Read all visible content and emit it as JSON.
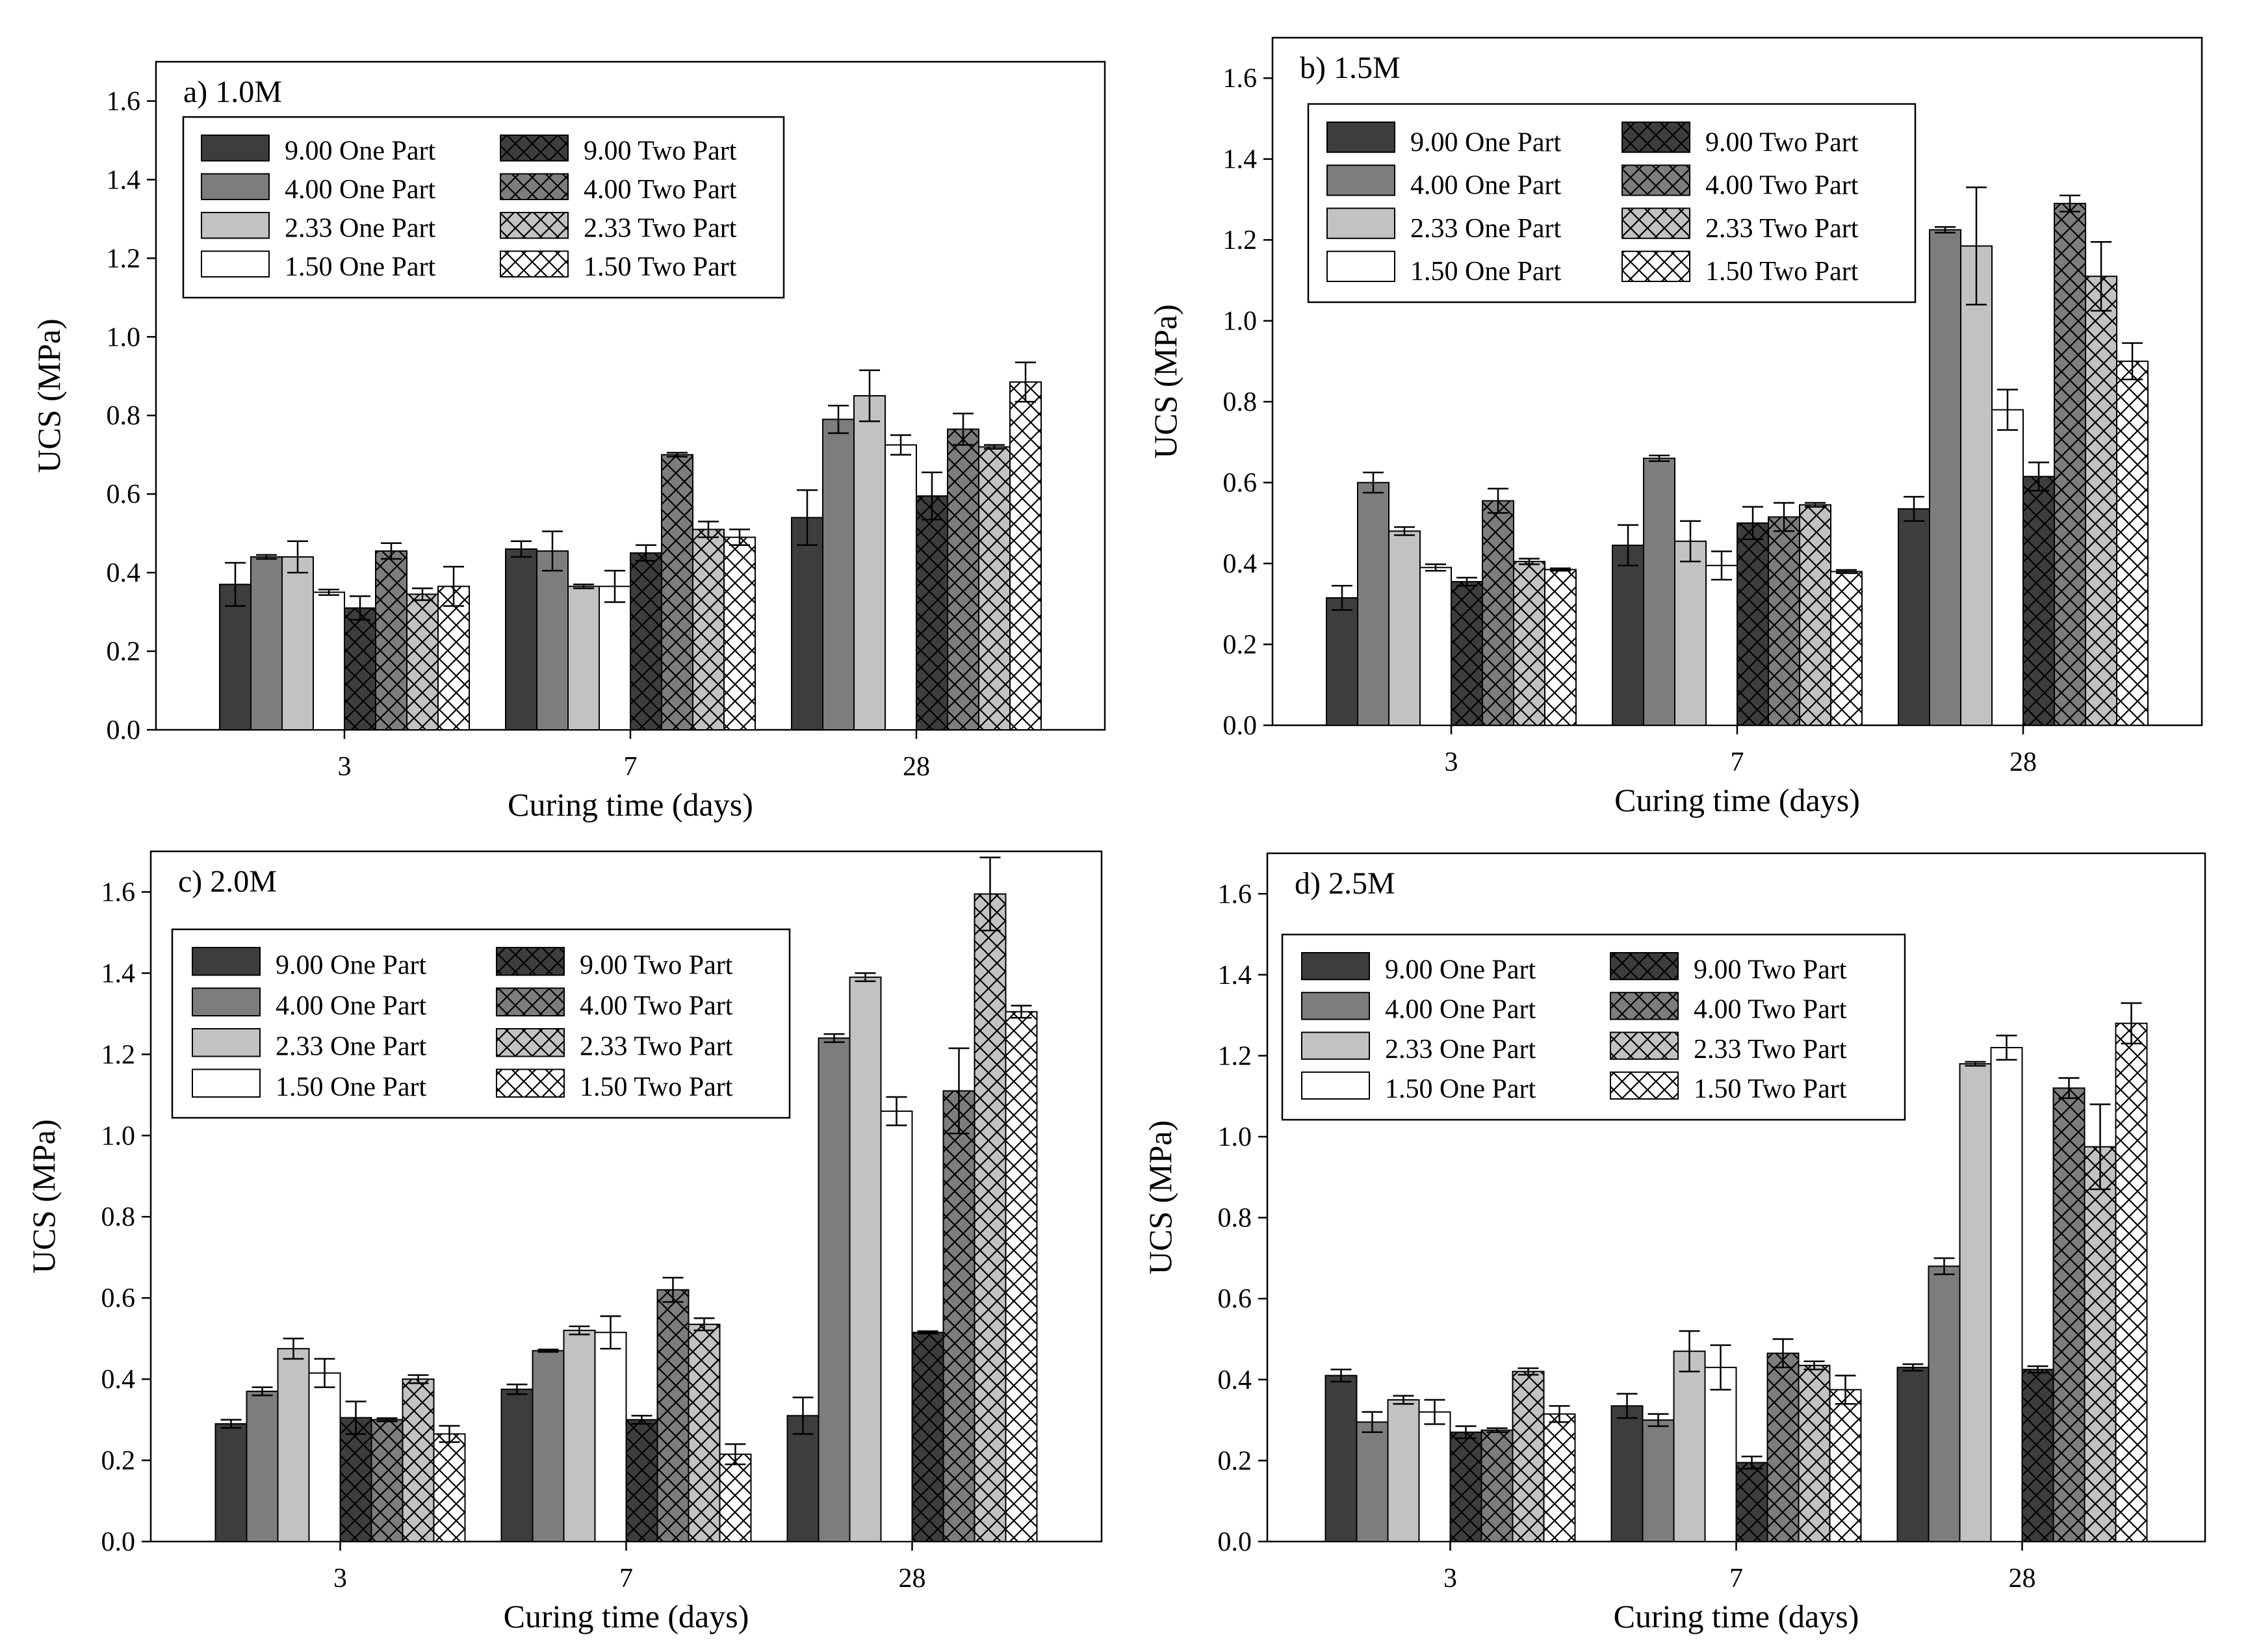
{
  "chart_data": [
    {
      "type": "bar",
      "title": "a) 1.0M",
      "xlabel": "Curing time (days)",
      "ylabel": "UCS (MPa)",
      "ylim": [
        0,
        1.7
      ],
      "yticks": [
        "0.0",
        "0.2",
        "0.4",
        "0.6",
        "0.8",
        "1.0",
        "1.2",
        "1.4",
        "1.6"
      ],
      "categories": [
        "3",
        "7",
        "28"
      ],
      "legend_position": "upper-left",
      "series": [
        {
          "name": "9.00 One Part",
          "values": [
            0.37,
            0.46,
            0.54
          ],
          "errors": [
            0.055,
            0.02,
            0.07
          ]
        },
        {
          "name": "4.00 One Part",
          "values": [
            0.44,
            0.455,
            0.79
          ],
          "errors": [
            0.005,
            0.05,
            0.035
          ]
        },
        {
          "name": "2.33 One Part",
          "values": [
            0.44,
            0.365,
            0.85
          ],
          "errors": [
            0.04,
            0.005,
            0.065
          ]
        },
        {
          "name": "1.50 One Part",
          "values": [
            0.35,
            0.365,
            0.725
          ],
          "errors": [
            0.007,
            0.04,
            0.025
          ]
        },
        {
          "name": "9.00 Two Part",
          "values": [
            0.31,
            0.45,
            0.595
          ],
          "errors": [
            0.03,
            0.02,
            0.06
          ]
        },
        {
          "name": "4.00 Two Part",
          "values": [
            0.455,
            0.7,
            0.765
          ],
          "errors": [
            0.02,
            0.005,
            0.04
          ]
        },
        {
          "name": "2.33 Two Part",
          "values": [
            0.345,
            0.51,
            0.72
          ],
          "errors": [
            0.015,
            0.02,
            0.005
          ]
        },
        {
          "name": "1.50 Two Part",
          "values": [
            0.365,
            0.49,
            0.885
          ],
          "errors": [
            0.05,
            0.02,
            0.05
          ]
        }
      ]
    },
    {
      "type": "bar",
      "title": "b) 1.5M",
      "xlabel": "Curing time (days)",
      "ylabel": "UCS (MPa)",
      "ylim": [
        0,
        1.7
      ],
      "yticks": [
        "0.0",
        "0.2",
        "0.4",
        "0.6",
        "0.8",
        "1.0",
        "1.2",
        "1.4",
        "1.6"
      ],
      "categories": [
        "3",
        "7",
        "28"
      ],
      "legend_position": "upper-left",
      "series": [
        {
          "name": "9.00 One Part",
          "values": [
            0.315,
            0.445,
            0.535
          ],
          "errors": [
            0.03,
            0.05,
            0.03
          ]
        },
        {
          "name": "4.00 One Part",
          "values": [
            0.6,
            0.66,
            1.225
          ],
          "errors": [
            0.025,
            0.007,
            0.007
          ]
        },
        {
          "name": "2.33 One Part",
          "values": [
            0.48,
            0.455,
            1.185
          ],
          "errors": [
            0.01,
            0.05,
            0.145
          ]
        },
        {
          "name": "1.50 One Part",
          "values": [
            0.39,
            0.395,
            0.78
          ],
          "errors": [
            0.008,
            0.035,
            0.05
          ]
        },
        {
          "name": "9.00 Two Part",
          "values": [
            0.355,
            0.5,
            0.615
          ],
          "errors": [
            0.01,
            0.04,
            0.035
          ]
        },
        {
          "name": "4.00 Two Part",
          "values": [
            0.555,
            0.515,
            1.29
          ],
          "errors": [
            0.03,
            0.035,
            0.02
          ]
        },
        {
          "name": "2.33 Two Part",
          "values": [
            0.405,
            0.545,
            1.11
          ],
          "errors": [
            0.007,
            0.005,
            0.085
          ]
        },
        {
          "name": "1.50 Two Part",
          "values": [
            0.385,
            0.38,
            0.9
          ],
          "errors": [
            0.003,
            0.004,
            0.045
          ]
        }
      ]
    },
    {
      "type": "bar",
      "title": "c) 2.0M",
      "xlabel": "Curing time (days)",
      "ylabel": "UCS (MPa)",
      "ylim": [
        0,
        1.7
      ],
      "yticks": [
        "0.0",
        "0.2",
        "0.4",
        "0.6",
        "0.8",
        "1.0",
        "1.2",
        "1.4",
        "1.6"
      ],
      "categories": [
        "3",
        "7",
        "28"
      ],
      "legend_position": "upper-left",
      "series": [
        {
          "name": "9.00 One Part",
          "values": [
            0.29,
            0.375,
            0.31
          ],
          "errors": [
            0.01,
            0.012,
            0.045
          ]
        },
        {
          "name": "4.00 One Part",
          "values": [
            0.37,
            0.47,
            1.24
          ],
          "errors": [
            0.01,
            0.003,
            0.01
          ]
        },
        {
          "name": "2.33 One Part",
          "values": [
            0.475,
            0.52,
            1.39
          ],
          "errors": [
            0.025,
            0.01,
            0.01
          ]
        },
        {
          "name": "1.50 One Part",
          "values": [
            0.415,
            0.515,
            1.06
          ],
          "errors": [
            0.035,
            0.04,
            0.035
          ]
        },
        {
          "name": "9.00 Two Part",
          "values": [
            0.305,
            0.3,
            0.515
          ],
          "errors": [
            0.04,
            0.01,
            0.003
          ]
        },
        {
          "name": "4.00 Two Part",
          "values": [
            0.3,
            0.62,
            1.11
          ],
          "errors": [
            0.004,
            0.03,
            0.105
          ]
        },
        {
          "name": "2.33 Two Part",
          "values": [
            0.4,
            0.535,
            1.595
          ],
          "errors": [
            0.01,
            0.015,
            0.09
          ]
        },
        {
          "name": "1.50 Two Part",
          "values": [
            0.265,
            0.215,
            1.305
          ],
          "errors": [
            0.02,
            0.025,
            0.015
          ]
        }
      ]
    },
    {
      "type": "bar",
      "title": "d) 2.5M",
      "xlabel": "Curing time (days)",
      "ylabel": "UCS (MPa)",
      "ylim": [
        0,
        1.7
      ],
      "yticks": [
        "0.0",
        "0.2",
        "0.4",
        "0.6",
        "0.8",
        "1.0",
        "1.2",
        "1.4",
        "1.6"
      ],
      "categories": [
        "3",
        "7",
        "28"
      ],
      "legend_position": "upper-left",
      "series": [
        {
          "name": "9.00 One Part",
          "values": [
            0.41,
            0.335,
            0.43
          ],
          "errors": [
            0.015,
            0.03,
            0.008
          ]
        },
        {
          "name": "4.00 One Part",
          "values": [
            0.295,
            0.3,
            0.68
          ],
          "errors": [
            0.025,
            0.015,
            0.02
          ]
        },
        {
          "name": "2.33 One Part",
          "values": [
            0.35,
            0.47,
            1.18
          ],
          "errors": [
            0.01,
            0.05,
            0.005
          ]
        },
        {
          "name": "1.50 One Part",
          "values": [
            0.32,
            0.43,
            1.22
          ],
          "errors": [
            0.03,
            0.055,
            0.03
          ]
        },
        {
          "name": "9.00 Two Part",
          "values": [
            0.27,
            0.195,
            0.425
          ],
          "errors": [
            0.015,
            0.015,
            0.008
          ]
        },
        {
          "name": "4.00 Two Part",
          "values": [
            0.275,
            0.465,
            1.12
          ],
          "errors": [
            0.005,
            0.035,
            0.025
          ]
        },
        {
          "name": "2.33 Two Part",
          "values": [
            0.42,
            0.435,
            0.975
          ],
          "errors": [
            0.008,
            0.01,
            0.105
          ]
        },
        {
          "name": "1.50 Two Part",
          "values": [
            0.315,
            0.375,
            1.28
          ],
          "errors": [
            0.02,
            0.035,
            0.05
          ]
        }
      ]
    }
  ],
  "style": {
    "series_fill": [
      "#3d3d3d",
      "#7d7d7d",
      "#c2c2c2",
      "#ffffff",
      "#3d3d3d",
      "#7d7d7d",
      "#c2c2c2",
      "#ffffff"
    ],
    "series_hatched": [
      false,
      false,
      false,
      false,
      true,
      true,
      true,
      true
    ],
    "hatch_color": "#000000",
    "axis_color": "#000000"
  }
}
